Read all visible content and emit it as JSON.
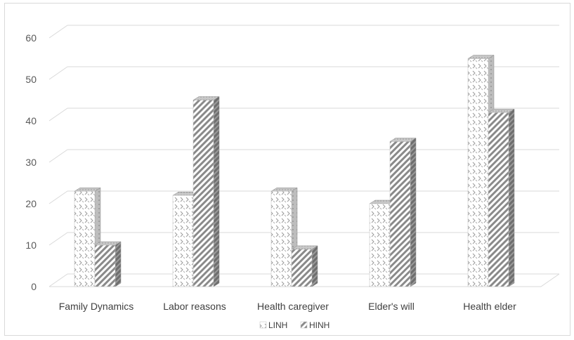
{
  "chart_data": {
    "type": "bar",
    "categories": [
      "Family Dynamics",
      "Labor reasons",
      "Health caregiver",
      "Elder's will",
      "Health elder"
    ],
    "series": [
      {
        "name": "LINH",
        "values": [
          23,
          22,
          23,
          20,
          55
        ],
        "pattern": "dotted-chevron",
        "color": "#9a9a9a"
      },
      {
        "name": "HINH",
        "values": [
          10,
          45,
          9,
          35,
          42
        ],
        "pattern": "diagonal-hatch",
        "color": "#7f7f7f"
      }
    ],
    "ylim": [
      0,
      60
    ],
    "yticks": [
      0,
      10,
      20,
      30,
      40,
      50,
      60
    ],
    "grid": true,
    "legend_position": "bottom",
    "title": "",
    "xlabel": "",
    "ylabel": "",
    "style": "3d-column"
  }
}
